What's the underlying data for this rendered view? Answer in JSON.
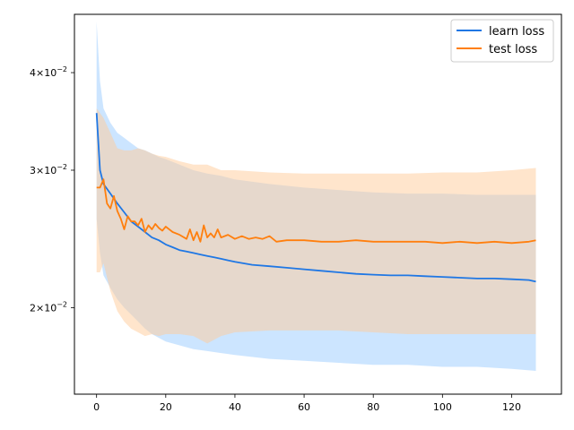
{
  "chart_data": {
    "type": "line",
    "title": "",
    "xlabel": "",
    "ylabel": "",
    "xlim": [
      -6.4,
      134.4
    ],
    "ylim": [
      0.0155,
      0.0475
    ],
    "yscale": "log",
    "grid": false,
    "legend_position": "top-right",
    "x_ticks": [
      {
        "value": 0,
        "label": "0"
      },
      {
        "value": 20,
        "label": "20"
      },
      {
        "value": 40,
        "label": "40"
      },
      {
        "value": 60,
        "label": "60"
      },
      {
        "value": 80,
        "label": "80"
      },
      {
        "value": 100,
        "label": "100"
      },
      {
        "value": 120,
        "label": "120"
      }
    ],
    "y_ticks": [
      {
        "value": 0.02,
        "mantissa": "2",
        "base": "10",
        "exp": "−2"
      },
      {
        "value": 0.03,
        "mantissa": "3",
        "base": "10",
        "exp": "−2"
      },
      {
        "value": 0.04,
        "mantissa": "4",
        "base": "10",
        "exp": "−2"
      }
    ],
    "series": [
      {
        "name": "learn loss",
        "color": "#1f77e4",
        "band_color": "#99ccff",
        "points": [
          [
            0,
            0.0355
          ],
          [
            1,
            0.03
          ],
          [
            2,
            0.0288
          ],
          [
            4,
            0.028
          ],
          [
            6,
            0.0272
          ],
          [
            8,
            0.0265
          ],
          [
            10,
            0.0258
          ],
          [
            12,
            0.0254
          ],
          [
            14,
            0.025
          ],
          [
            16,
            0.0246
          ],
          [
            18,
            0.0244
          ],
          [
            20,
            0.0241
          ],
          [
            22,
            0.0239
          ],
          [
            24,
            0.0237
          ],
          [
            26,
            0.0236
          ],
          [
            28,
            0.0235
          ],
          [
            30,
            0.0234
          ],
          [
            32,
            0.0233
          ],
          [
            34,
            0.0232
          ],
          [
            36,
            0.0231
          ],
          [
            38,
            0.023
          ],
          [
            40,
            0.0229
          ],
          [
            45,
            0.0227
          ],
          [
            50,
            0.0226
          ],
          [
            55,
            0.0225
          ],
          [
            60,
            0.0224
          ],
          [
            65,
            0.0223
          ],
          [
            70,
            0.0222
          ],
          [
            75,
            0.0221
          ],
          [
            80,
            0.02205
          ],
          [
            85,
            0.022
          ],
          [
            90,
            0.022
          ],
          [
            95,
            0.02195
          ],
          [
            100,
            0.0219
          ],
          [
            105,
            0.02185
          ],
          [
            110,
            0.0218
          ],
          [
            115,
            0.0218
          ],
          [
            120,
            0.02175
          ],
          [
            125,
            0.0217
          ],
          [
            127,
            0.0216
          ]
        ],
        "band": [
          [
            0,
            0.026,
            0.0465
          ],
          [
            1,
            0.0235,
            0.039
          ],
          [
            2,
            0.022,
            0.036
          ],
          [
            4,
            0.0212,
            0.0345
          ],
          [
            6,
            0.0205,
            0.0335
          ],
          [
            8,
            0.02,
            0.033
          ],
          [
            10,
            0.0196,
            0.0325
          ],
          [
            12,
            0.0192,
            0.032
          ],
          [
            14,
            0.0188,
            0.0318
          ],
          [
            16,
            0.0185,
            0.0315
          ],
          [
            18,
            0.0183,
            0.0312
          ],
          [
            20,
            0.0181,
            0.031
          ],
          [
            24,
            0.0179,
            0.0305
          ],
          [
            28,
            0.0177,
            0.03
          ],
          [
            32,
            0.0176,
            0.0297
          ],
          [
            36,
            0.0175,
            0.0295
          ],
          [
            40,
            0.0174,
            0.0292
          ],
          [
            50,
            0.0172,
            0.0288
          ],
          [
            60,
            0.0171,
            0.0285
          ],
          [
            70,
            0.017,
            0.0283
          ],
          [
            80,
            0.0169,
            0.0281
          ],
          [
            90,
            0.0169,
            0.028
          ],
          [
            100,
            0.0168,
            0.028
          ],
          [
            110,
            0.0168,
            0.0279
          ],
          [
            120,
            0.0167,
            0.0279
          ],
          [
            127,
            0.0166,
            0.0279
          ]
        ]
      },
      {
        "name": "test loss",
        "color": "#ff7f0e",
        "band_color": "#ffcc99",
        "points": [
          [
            0,
            0.0285
          ],
          [
            1,
            0.0285
          ],
          [
            2,
            0.0292
          ],
          [
            3,
            0.0272
          ],
          [
            4,
            0.0268
          ],
          [
            5,
            0.0278
          ],
          [
            6,
            0.0266
          ],
          [
            7,
            0.026
          ],
          [
            8,
            0.0252
          ],
          [
            9,
            0.0262
          ],
          [
            10,
            0.0258
          ],
          [
            11,
            0.0258
          ],
          [
            12,
            0.0255
          ],
          [
            13,
            0.026
          ],
          [
            14,
            0.025
          ],
          [
            15,
            0.0255
          ],
          [
            16,
            0.0252
          ],
          [
            17,
            0.0256
          ],
          [
            18,
            0.0253
          ],
          [
            19,
            0.0251
          ],
          [
            20,
            0.0254
          ],
          [
            22,
            0.025
          ],
          [
            24,
            0.0248
          ],
          [
            26,
            0.0245
          ],
          [
            27,
            0.0252
          ],
          [
            28,
            0.0244
          ],
          [
            29,
            0.025
          ],
          [
            30,
            0.0243
          ],
          [
            31,
            0.0255
          ],
          [
            32,
            0.0246
          ],
          [
            33,
            0.0249
          ],
          [
            34,
            0.0246
          ],
          [
            35,
            0.0252
          ],
          [
            36,
            0.0246
          ],
          [
            38,
            0.0248
          ],
          [
            40,
            0.0245
          ],
          [
            42,
            0.0247
          ],
          [
            44,
            0.0245
          ],
          [
            46,
            0.0246
          ],
          [
            48,
            0.0245
          ],
          [
            50,
            0.0247
          ],
          [
            52,
            0.0243
          ],
          [
            55,
            0.0244
          ],
          [
            58,
            0.0244
          ],
          [
            60,
            0.0244
          ],
          [
            65,
            0.0243
          ],
          [
            70,
            0.0243
          ],
          [
            75,
            0.0244
          ],
          [
            80,
            0.0243
          ],
          [
            85,
            0.0243
          ],
          [
            90,
            0.0243
          ],
          [
            95,
            0.0243
          ],
          [
            100,
            0.0242
          ],
          [
            105,
            0.0243
          ],
          [
            110,
            0.0242
          ],
          [
            115,
            0.0243
          ],
          [
            120,
            0.0242
          ],
          [
            125,
            0.0243
          ],
          [
            127,
            0.0244
          ]
        ],
        "band": [
          [
            0,
            0.0222,
            0.036
          ],
          [
            1,
            0.0222,
            0.0355
          ],
          [
            2,
            0.0228,
            0.035
          ],
          [
            4,
            0.021,
            0.0335
          ],
          [
            6,
            0.0198,
            0.032
          ],
          [
            8,
            0.0192,
            0.0318
          ],
          [
            10,
            0.0188,
            0.0318
          ],
          [
            12,
            0.0186,
            0.032
          ],
          [
            14,
            0.0184,
            0.0318
          ],
          [
            16,
            0.0185,
            0.0315
          ],
          [
            18,
            0.0184,
            0.0313
          ],
          [
            20,
            0.0185,
            0.0312
          ],
          [
            24,
            0.0185,
            0.0308
          ],
          [
            28,
            0.0184,
            0.0305
          ],
          [
            32,
            0.018,
            0.0305
          ],
          [
            36,
            0.0184,
            0.03
          ],
          [
            40,
            0.0186,
            0.03
          ],
          [
            50,
            0.0187,
            0.0298
          ],
          [
            60,
            0.0187,
            0.0297
          ],
          [
            70,
            0.0187,
            0.0297
          ],
          [
            80,
            0.0186,
            0.0297
          ],
          [
            90,
            0.0185,
            0.0297
          ],
          [
            100,
            0.0185,
            0.0298
          ],
          [
            110,
            0.0185,
            0.0298
          ],
          [
            120,
            0.0185,
            0.03
          ],
          [
            127,
            0.0185,
            0.0302
          ]
        ]
      }
    ]
  }
}
